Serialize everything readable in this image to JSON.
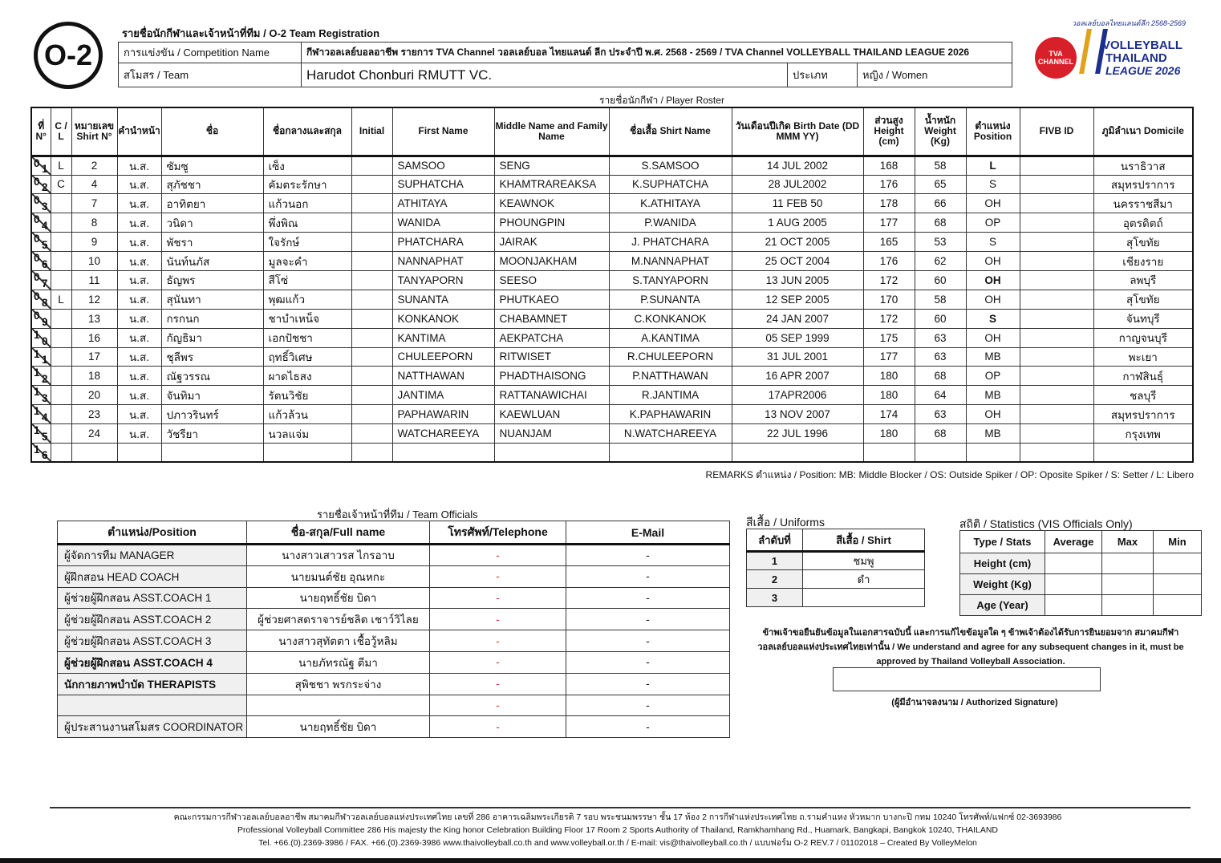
{
  "form_code": "O-2",
  "header": {
    "title": "รายชื่อนักกีฬาและเจ้าหน้าที่ทีม / O-2 Team Registration",
    "competition_label": "การแข่งขัน / Competition Name",
    "competition_value": "กีฬาวอลเลย์บอลอาชีพ รายการ TVA Channel วอลเลย์บอล ไทยแลนด์ ลีก ประจำปี พ.ศ. 2568 - 2569 /  TVA Channel VOLLEYBALL THAILAND LEAGUE 2026",
    "team_label": "สโมสร / Team",
    "team_value": "Harudot Chonburi RMUTT VC.",
    "category_label": "ประเภท",
    "category_value": "หญิง / Women"
  },
  "logo": {
    "tva": "TVA CHANNEL",
    "line1": "วอลเลย์บอลไทยแลนด์ลีก 2568-2569",
    "line2": "VOLLEYBALL",
    "line3": "THAILAND",
    "line4": "LEAGUE 2026"
  },
  "roster": {
    "title": "รายชื่อนักกีฬา / Player Roster",
    "headers": [
      "ที่ N°",
      "C / L",
      "หมายเลข Shirt N°",
      "คำนำหน้า",
      "ชื่อ",
      "ชื่อกลางและสกุล",
      "Initial",
      "First Name",
      "Middle Name and Family Name",
      "ชื่อเสื้อ Shirt Name",
      "วันเดือนปีเกิด Birth Date (DD MMM YY)",
      "ส่วนสูง Height (cm)",
      "น้ำหนัก Weight (Kg)",
      "ตำแหน่ง Position",
      "FIVB ID",
      "ภูมิลำเนา Domicile"
    ],
    "rows": [
      [
        "01",
        "L",
        "2",
        "น.ส.",
        "ซัมซู",
        "เซ็ง",
        "",
        "SAMSOO",
        "SENG",
        "S.SAMSOO",
        "14 JUL 2002",
        "168",
        "58",
        "L",
        "",
        "นราธิวาส"
      ],
      [
        "02",
        "C",
        "4",
        "น.ส.",
        "สุภัชชา",
        "คัมตระรักษา",
        "",
        "SUPHATCHA",
        "KHAMTRAREAKSA",
        "K.SUPHATCHA",
        "28 JUL2002",
        "176",
        "65",
        "S",
        "",
        "สมุทรปราการ"
      ],
      [
        "03",
        "",
        "7",
        "น.ส.",
        "อาทิตยา",
        "แก้วนอก",
        "",
        "ATHITAYA",
        "KEAWNOK",
        "K.ATHITAYA",
        "11 FEB 50",
        "178",
        "66",
        "OH",
        "",
        "นครราชสีมา"
      ],
      [
        "04",
        "",
        "8",
        "น.ส.",
        "วนิดา",
        "พึ่งพิณ",
        "",
        "WANIDA",
        "PHOUNGPIN",
        "P.WANIDA",
        "1 AUG 2005",
        "177",
        "68",
        "OP",
        "",
        "อุตรดิตถ์"
      ],
      [
        "05",
        "",
        "9",
        "น.ส.",
        "พัชรา",
        "ใจรักษ์",
        "",
        "PHATCHARA",
        "JAIRAK",
        "J. PHATCHARA",
        "21 OCT 2005",
        "165",
        "53",
        "S",
        "",
        "สุโขทัย"
      ],
      [
        "06",
        "",
        "10",
        "น.ส.",
        "นันท์นภัส",
        "มูลจะคำ",
        "",
        "NANNAPHAT",
        "MOONJAKHAM",
        "M.NANNAPHAT",
        "25 OCT 2004",
        "176",
        "62",
        "OH",
        "",
        "เชียงราย"
      ],
      [
        "07",
        "",
        "11",
        "น.ส.",
        "ธัญพร",
        "สีโซ่",
        "",
        "TANYAPORN",
        "SEESO",
        "S.TANYAPORN",
        "13 JUN 2005",
        "172",
        "60",
        "OH",
        "",
        "ลพบุรี"
      ],
      [
        "08",
        "L",
        "12",
        "น.ส.",
        "สุนันทา",
        "พุฒแก้ว",
        "",
        "SUNANTA",
        "PHUTKAEO",
        "P.SUNANTA",
        "12 SEP 2005",
        "170",
        "58",
        "OH",
        "",
        "สุโขทัย"
      ],
      [
        "09",
        "",
        "13",
        "น.ส.",
        "กรกนก",
        "ชาบำเหน็จ",
        "",
        "KONKANOK",
        "CHABAMNET",
        "C.KONKANOK",
        "24 JAN 2007",
        "172",
        "60",
        "S",
        "",
        "จันทบุรี"
      ],
      [
        "10",
        "",
        "16",
        "น.ส.",
        "กัญธิมา",
        "เอกปัชชา",
        "",
        "KANTIMA",
        "AEKPATCHA",
        "A.KANTIMA",
        "05 SEP 1999",
        "175",
        "63",
        "OH",
        "",
        "กาญจนบุรี"
      ],
      [
        "11",
        "",
        "17",
        "น.ส.",
        "ชุลีพร",
        "ฤทธิ์วิเศษ",
        "",
        "CHULEEPORN",
        "RITWISET",
        "R.CHULEEPORN",
        "31 JUL 2001",
        "177",
        "63",
        "MB",
        "",
        "พะเยา"
      ],
      [
        "12",
        "",
        "18",
        "น.ส.",
        "ณัฐวรรณ",
        "ผาดไธสง",
        "",
        "NATTHAWAN",
        "PHADTHAISONG",
        "P.NATTHAWAN",
        "16 APR 2007",
        "180",
        "68",
        "OP",
        "",
        "กาฬสินธุ์"
      ],
      [
        "13",
        "",
        "20",
        "น.ส.",
        "จันทิมา",
        "รัตนวิชัย",
        "",
        "JANTIMA",
        "RATTANAWICHAI",
        "R.JANTIMA",
        "17APR2006",
        "180",
        "64",
        "MB",
        "",
        "ชลบุรี"
      ],
      [
        "14",
        "",
        "23",
        "น.ส.",
        "ปภาวรินทร์",
        "แก้วล้วน",
        "",
        "PAPHAWARIN",
        "KAEWLUAN",
        "K.PAPHAWARIN",
        "13 NOV 2007",
        "174",
        "63",
        "OH",
        "",
        "สมุทรปราการ"
      ],
      [
        "15",
        "",
        "24",
        "น.ส.",
        "วัชรียา",
        "นวลแจ่ม",
        "",
        "WATCHAREEYA",
        "NUANJAM",
        "N.WATCHAREEYA",
        "22 JUL 1996",
        "180",
        "68",
        "MB",
        "",
        "กรุงเทพ"
      ],
      [
        "16",
        "",
        "",
        "",
        "",
        "",
        "",
        "",
        "",
        "",
        "",
        "",
        "",
        "",
        "",
        ""
      ]
    ],
    "remarks": "REMARKS ตำแหน่ง / Position: MB: Middle Blocker / OS: Outside Spiker / OP: Oposite Spiker / S: Setter / L: Libero"
  },
  "officials": {
    "title": "รายชื่อเจ้าหน้าที่ทีม / Team Officials",
    "headers": [
      "ตำแหน่ง/Position",
      "ชื่อ-สกุล/Full name",
      "โทรศัพท์/Telephone",
      "E-Mail"
    ],
    "rows": [
      [
        "ผู้จัดการทีม MANAGER",
        "นางสาวเสาวรส  ไกรอาบ",
        "-",
        "-"
      ],
      [
        "ผู้ฝึกสอน HEAD COACH",
        "นายมนต์ชัย อุณหกะ",
        "-",
        "-"
      ],
      [
        "ผู้ช่วยผู้ฝึกสอน ASST.COACH 1",
        "นายฤทธิ์ชัย บิดา",
        "-",
        "-"
      ],
      [
        "ผู้ช่วยผู้ฝึกสอน ASST.COACH 2",
        "ผู้ช่วยศาสตราจารย์ชลิต เชาว์วิไลย",
        "-",
        "-"
      ],
      [
        "ผู้ช่วยผู้ฝึกสอน ASST.COACH 3",
        "นางสาวสุทัตตา เชื้อวู้หลิม",
        "-",
        "-"
      ],
      [
        "ผู้ช่วยผู้ฝึกสอน ASST.COACH 4",
        "นายภัทรณัฐ ตีมา",
        "-",
        "-"
      ],
      [
        "นักกายภาพบำบัด THERAPISTS",
        "สุพิชชา พรกระจ่าง",
        "-",
        "-"
      ],
      [
        "",
        "",
        "-",
        "-"
      ],
      [
        "ผู้ประสานงานสโมสร COORDINATOR",
        "นายฤทธิ์ชัย บิดา",
        "-",
        "-"
      ]
    ]
  },
  "uniforms": {
    "title": "สีเสื้อ / Uniforms",
    "headers": [
      "ลำดับที่",
      "สีเสื้อ / Shirt"
    ],
    "rows": [
      [
        "1",
        "ชมพู"
      ],
      [
        "2",
        "ดำ"
      ],
      [
        "3",
        ""
      ]
    ]
  },
  "stats": {
    "title": "สถิติ / Statistics (VIS Officials Only)",
    "headers": [
      "Type / Stats",
      "Average",
      "Max",
      "Min"
    ],
    "rows": [
      [
        "Height (cm)",
        "",
        "",
        ""
      ],
      [
        "Weight (Kg)",
        "",
        "",
        ""
      ],
      [
        "Age (Year)",
        "",
        "",
        ""
      ]
    ]
  },
  "declaration": {
    "line1": "ข้าพเจ้าขอยืนยันข้อมูลในเอกสารฉบับนี้ และการแก้ไขข้อมูลใด ๆ ข้าพเจ้าต้องได้รับการยินยอมจาก สมาคมกีฬา",
    "line2": "วอลเลย์บอลแห่งประเทศไทยเท่านั้น / We understand and agree for any subsequent changes in it, must be",
    "line3": "approved by Thailand Volleyball Association.",
    "signature_label": "(ผู้มีอำนาจลงนาม / Authorized Signature)"
  },
  "footer": {
    "line1": "คณะกรรมการกีฬาวอลเลย์บอลอาชีพ สมาคมกีฬาวอลเลย์บอลแห่งประเทศไทย เลขที่ 286 อาคารเฉลิมพระเกียรติ 7 รอบ พระชนมพรรษา ชั้น 17 ห้อง 2 การกีฬาแห่งประเทศไทย ถ.รามคำแหง หัวหมาก บางกะปิ กทม 10240 โทรศัพท์/แฟกซ์ 02-3693986",
    "line2": "Professional Volleyball Committee 286 His majesty the King honor Celebration Building Floor 17 Room 2 Sports Authority of Thailand, Ramkhamhang Rd., Huamark, Bangkapi, Bangkok 10240, THAILAND",
    "line3": "Tel. +66.(0).2369-3986 / FAX. +66.(0).2369-3986 www.thaivolleyball.co.th and www.volleyball.or.th / E-mail: vis@thaivolleyball.co.th / แบบฟอร์ม O-2 REV.7 / 01102018 – Created By VolleyMelon"
  },
  "colors": {
    "tva_red": "#d8202a",
    "league_blue": "#1d2f8c",
    "league_gold": "#e0a21a",
    "dash_red": "#cc3333"
  }
}
